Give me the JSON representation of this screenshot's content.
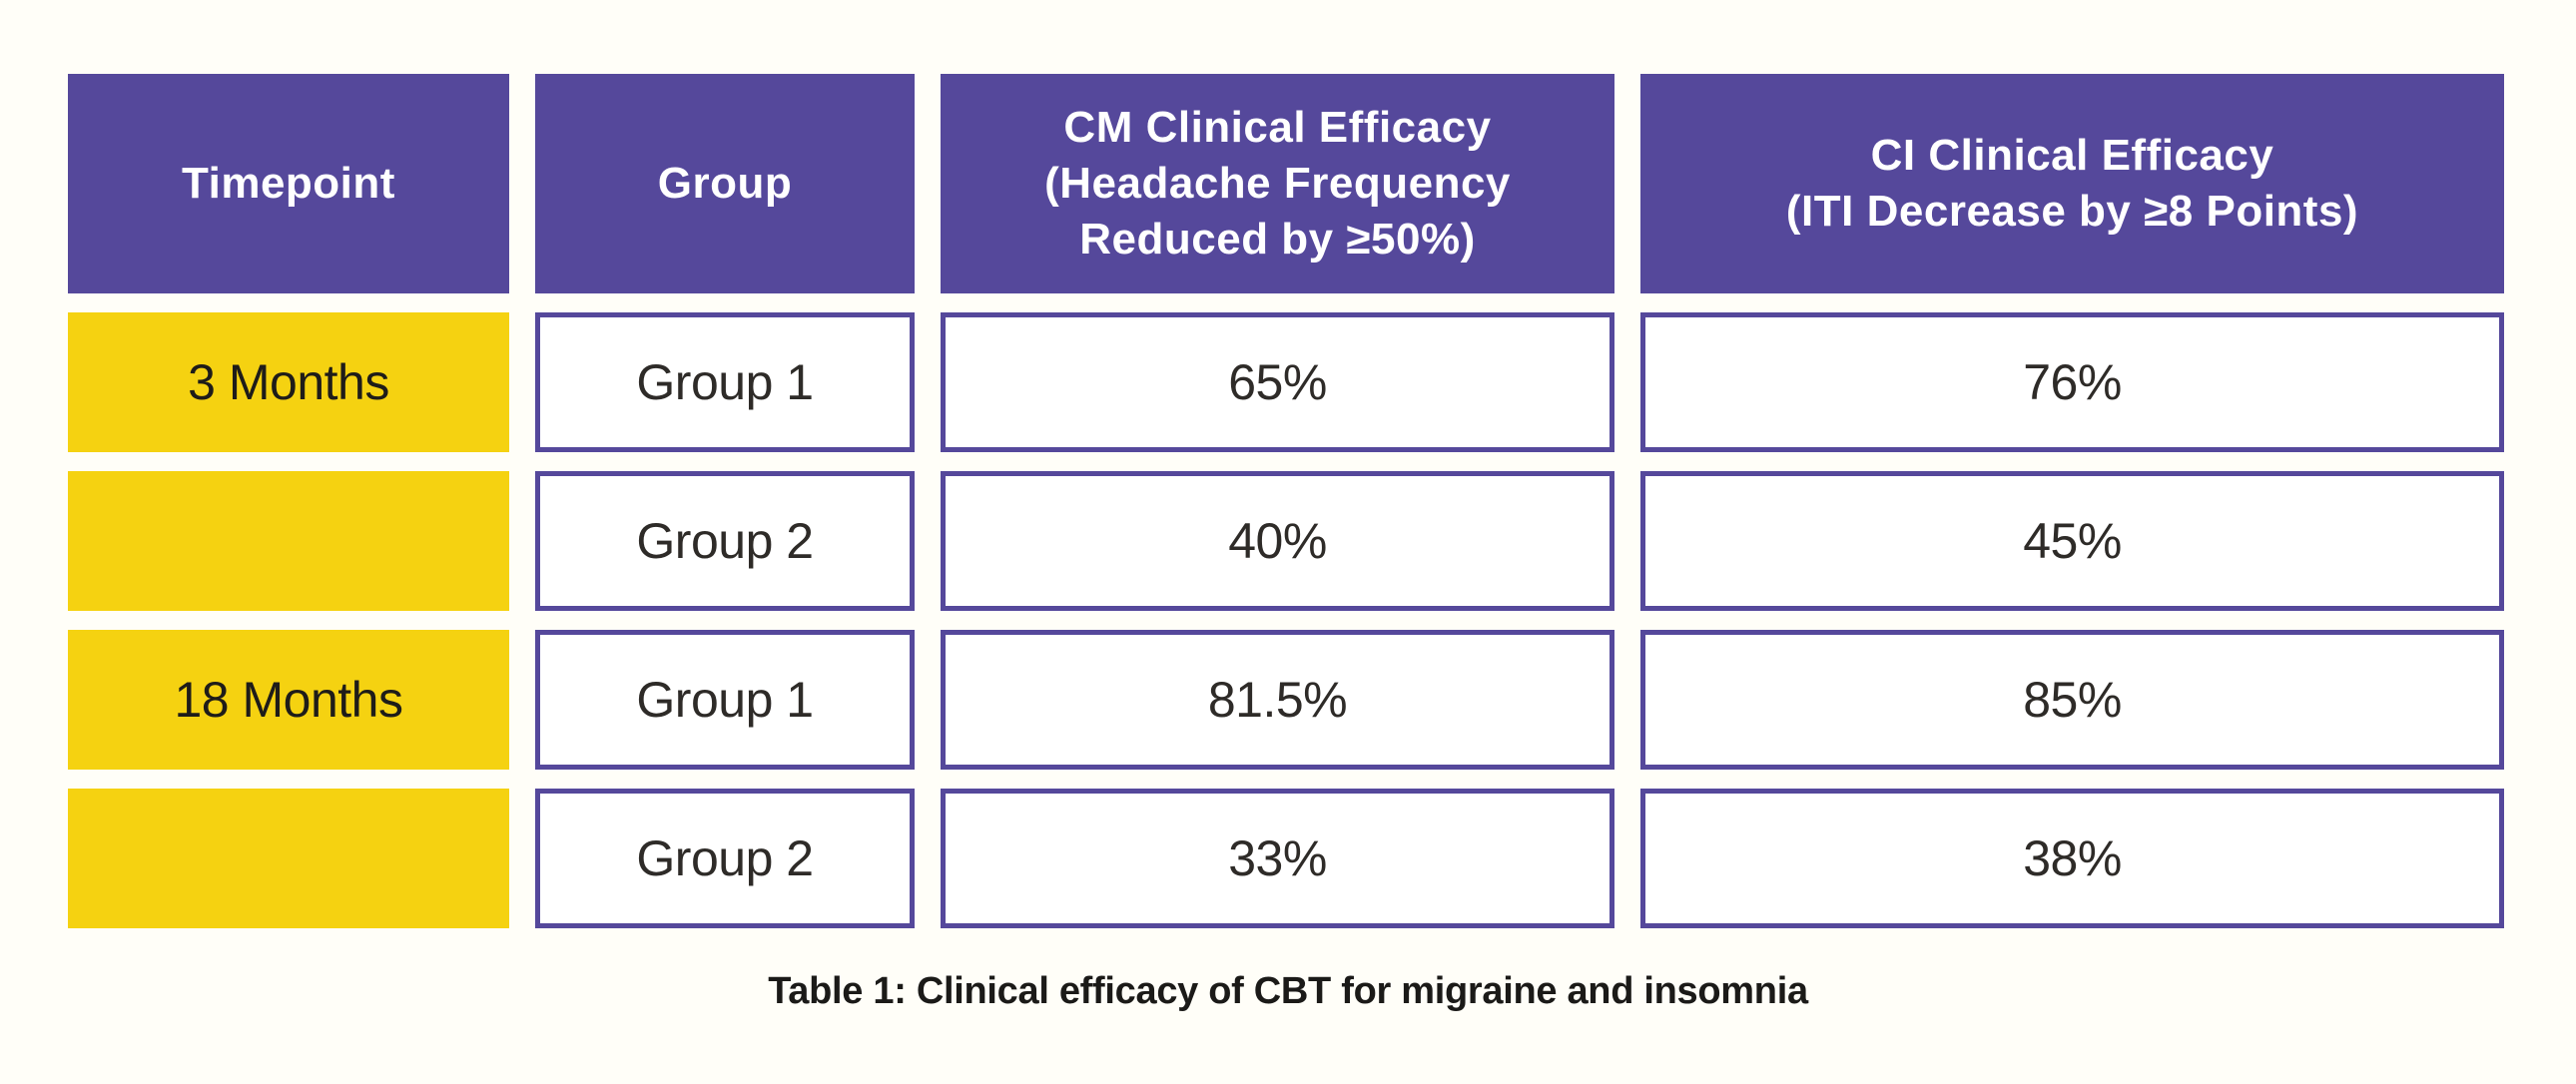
{
  "page": {
    "caption": "Table 1: Clinical efficacy of CBT for migraine and insomnia"
  },
  "colors": {
    "header_bg": "#55489B",
    "header_text": "#FFFFFF",
    "timepoint_bg": "#F5D211",
    "cell_border": "#55489B",
    "cell_bg": "#FFFFFF",
    "cell_text": "#2E2B28",
    "page_bg": "#FFFEF8"
  },
  "table": {
    "columns": [
      {
        "key": "timepoint",
        "label_lines": [
          "Timepoint"
        ]
      },
      {
        "key": "group",
        "label_lines": [
          "Group"
        ]
      },
      {
        "key": "cm",
        "label_lines": [
          "CM Clinical Efficacy",
          "(Headache Frequency",
          "Reduced by ≥50%)"
        ]
      },
      {
        "key": "ci",
        "label_lines": [
          "CI Clinical Efficacy",
          "(ITI Decrease by ≥8 Points)"
        ]
      }
    ],
    "rows": [
      {
        "timepoint": "3 Months",
        "group": "Group 1",
        "cm": "65%",
        "ci": "76%"
      },
      {
        "timepoint": "",
        "group": "Group 2",
        "cm": "40%",
        "ci": "45%"
      },
      {
        "timepoint": "18 Months",
        "group": "Group 1",
        "cm": "81.5%",
        "ci": "85%"
      },
      {
        "timepoint": "",
        "group": "Group 2",
        "cm": "33%",
        "ci": "38%"
      }
    ]
  }
}
